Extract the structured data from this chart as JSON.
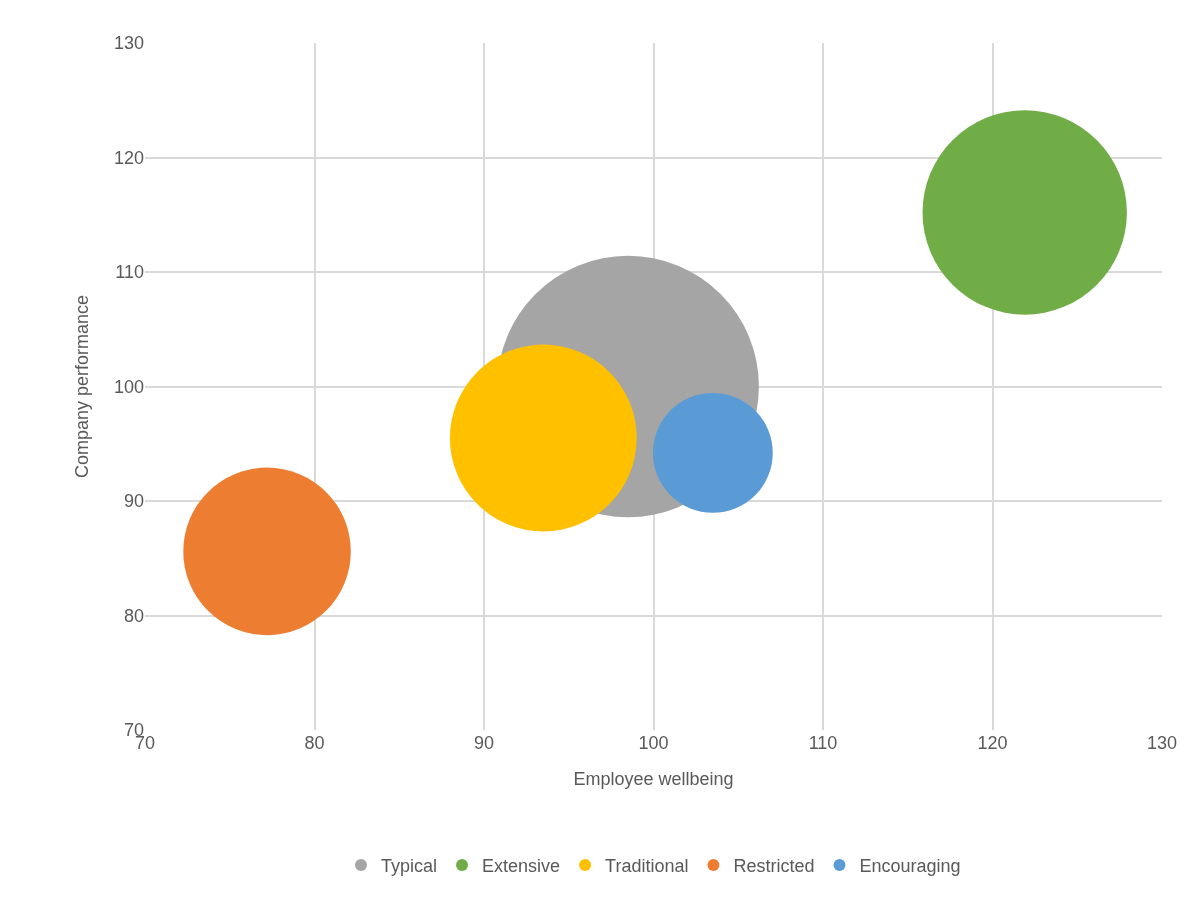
{
  "chart_data": {
    "type": "bubble",
    "xlabel": "Employee wellbeing",
    "ylabel": "Company performance",
    "xlim": [
      70,
      130
    ],
    "xticks": [
      70,
      80,
      90,
      100,
      110,
      120,
      130
    ],
    "ylim": [
      70,
      130
    ],
    "yticks": [
      70,
      80,
      90,
      100,
      110,
      120,
      130
    ],
    "grid": true,
    "legend": "bottom",
    "series": [
      {
        "name": "Typical",
        "color": "#a5a5a5",
        "x": [
          98.5
        ],
        "values": [
          100.0
        ],
        "sizes": [
          1
        ]
      },
      {
        "name": "Extensive",
        "color": "#70ad47",
        "x": [
          121.9
        ],
        "values": [
          115.2
        ],
        "sizes": [
          0.61
        ]
      },
      {
        "name": "Traditional",
        "color": "#ffc000",
        "x": [
          93.5
        ],
        "values": [
          95.5
        ],
        "sizes": [
          0.51
        ]
      },
      {
        "name": "Restricted",
        "color": "#ed7d31",
        "x": [
          77.2
        ],
        "values": [
          85.6
        ],
        "sizes": [
          0.41
        ]
      },
      {
        "name": "Encouraging",
        "color": "#5b9bd5",
        "x": [
          103.5
        ],
        "values": [
          94.2
        ],
        "sizes": [
          0.21
        ]
      }
    ]
  }
}
